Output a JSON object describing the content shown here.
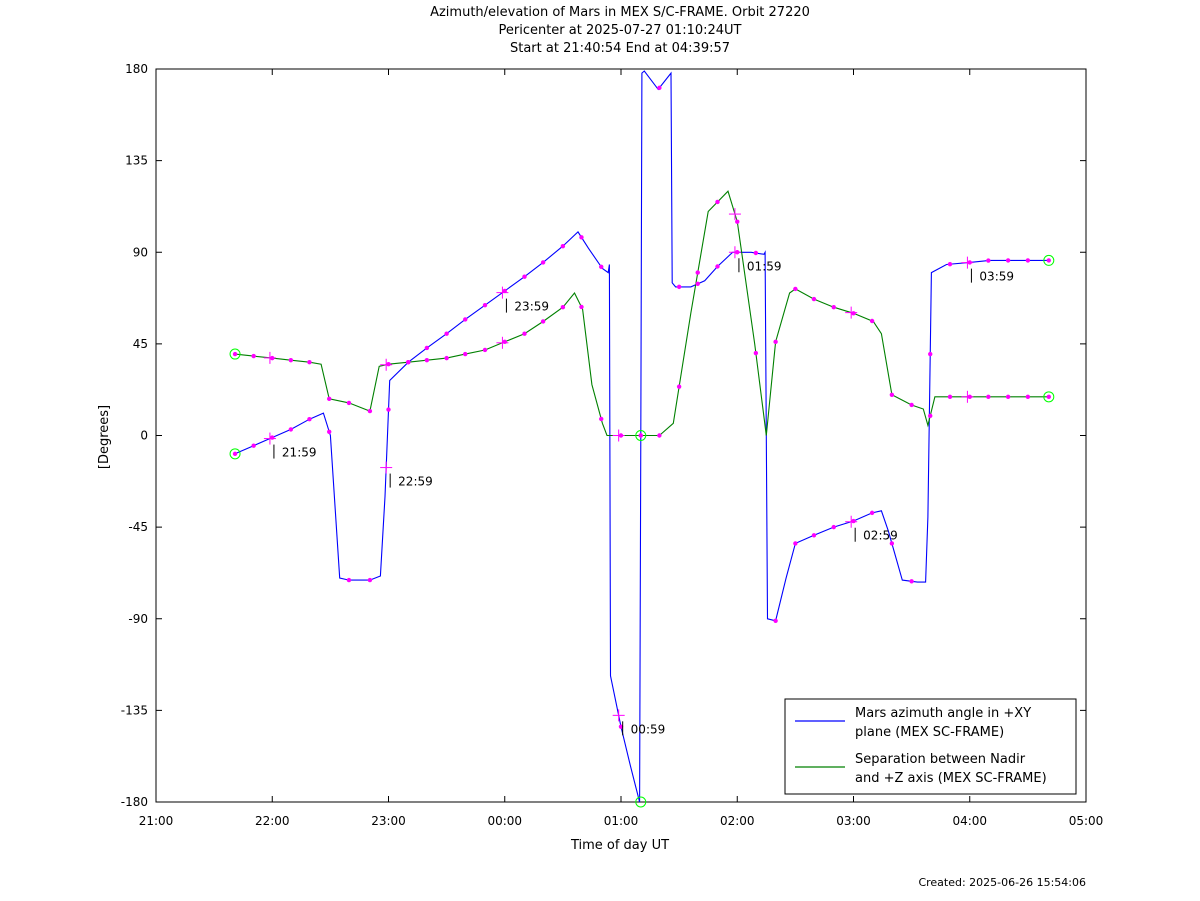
{
  "chart_data": {
    "type": "line",
    "title_lines": [
      "Azimuth/elevation of Mars in MEX S/C-FRAME.  Orbit 27220",
      "Pericenter at 2025-07-27 01:10:24UT",
      "Start at 21:40:54 End at 04:39:57"
    ],
    "xlabel": "Time of day UT",
    "ylabel": "[Degrees]",
    "x_ticks": [
      "21:00",
      "22:00",
      "23:00",
      "00:00",
      "01:00",
      "02:00",
      "03:00",
      "04:00",
      "05:00"
    ],
    "y_ticks": [
      "180",
      "135",
      "90",
      "45",
      "0",
      "-45",
      "-90",
      "-135",
      "-180"
    ],
    "xlim_hours": [
      21,
      29
    ],
    "ylim": [
      -180,
      180
    ],
    "grid": false,
    "legend_position": "bottom-right",
    "colors": {
      "series1": "#0000ff",
      "series2": "#008000",
      "marker": "#ff00ff",
      "endpoint": "#00ff00",
      "axis": "#000000"
    },
    "series": [
      {
        "name": "Mars azimuth angle in +XY plane (MEX SC-FRAME)",
        "legend_lines": [
          "Mars azimuth angle in +XY",
          "plane (MEX SC-FRAME)"
        ],
        "x_hours": [
          21.68,
          21.84,
          22.0,
          22.16,
          22.32,
          22.44,
          22.5,
          22.58,
          22.66,
          22.84,
          22.93,
          22.97,
          23.01,
          23.17,
          23.33,
          23.5,
          23.66,
          23.83,
          24.0,
          24.17,
          24.33,
          24.5,
          24.63,
          24.72,
          24.84,
          24.89,
          24.9,
          24.91,
          25.0,
          25.08,
          25.16,
          25.17,
          25.18,
          25.2,
          25.32,
          25.43,
          25.44,
          25.47,
          25.6,
          25.72,
          25.83,
          25.96,
          26.0,
          26.12,
          26.23,
          26.24,
          26.26,
          26.33,
          26.42,
          26.5,
          26.66,
          26.83,
          27.0,
          27.16,
          27.24,
          27.3,
          27.42,
          27.55,
          27.62,
          27.64,
          27.67,
          27.8,
          28.0,
          28.17,
          28.33,
          28.5,
          28.68
        ],
        "values": [
          -9,
          -5,
          -1,
          3,
          8,
          11,
          0,
          -70,
          -71,
          -71,
          -69,
          -30,
          27,
          36,
          43,
          50,
          57,
          64,
          71,
          78,
          85,
          93,
          100,
          92,
          82,
          80,
          84,
          -118,
          -143,
          -162,
          -180,
          0,
          178,
          179,
          170,
          178,
          75,
          73,
          73,
          76,
          83,
          90,
          90,
          90,
          89,
          90,
          -90,
          -91,
          -70,
          -53,
          -49,
          -45,
          -42,
          -38,
          -37,
          -47,
          -71,
          -72,
          -72,
          -40,
          80,
          84,
          85,
          86,
          86,
          86,
          86
        ]
      },
      {
        "name": "Separation between Nadir and +Z axis (MEX SC-FRAME)",
        "legend_lines": [
          "Separation between Nadir",
          "and +Z axis (MEX SC-FRAME)"
        ],
        "x_hours": [
          21.68,
          21.84,
          22.0,
          22.16,
          22.32,
          22.42,
          22.49,
          22.66,
          22.84,
          22.92,
          23.0,
          23.17,
          23.33,
          23.5,
          23.66,
          23.83,
          24.0,
          24.17,
          24.33,
          24.5,
          24.6,
          24.67,
          24.75,
          24.84,
          24.88,
          25.0,
          25.17,
          25.33,
          25.45,
          25.6,
          25.75,
          25.92,
          26.0,
          26.15,
          26.25,
          26.33,
          26.45,
          26.5,
          26.66,
          26.83,
          27.0,
          27.17,
          27.24,
          27.33,
          27.5,
          27.6,
          27.64,
          27.7,
          27.83,
          28.0,
          28.17,
          28.33,
          28.5,
          28.68
        ],
        "values": [
          40,
          39,
          38,
          37,
          36,
          35,
          18,
          16,
          12,
          34,
          35,
          36,
          37,
          38,
          40,
          42,
          46,
          50,
          56,
          63,
          70,
          62,
          25,
          6,
          0,
          0,
          0,
          0,
          6,
          60,
          110,
          120,
          105,
          45,
          0,
          46,
          70,
          72,
          67,
          63,
          60,
          56,
          50,
          20,
          15,
          13,
          5,
          19,
          19,
          19,
          19,
          19,
          19,
          19
        ]
      }
    ],
    "markers_x_hours": [
      21.68,
      21.84,
      22.0,
      22.16,
      22.32,
      22.49,
      22.66,
      22.84,
      23.0,
      23.17,
      23.33,
      23.5,
      23.66,
      23.83,
      24.0,
      24.17,
      24.33,
      24.5,
      24.66,
      24.83,
      25.0,
      25.17,
      25.33,
      25.5,
      25.66,
      25.83,
      26.0,
      26.16,
      26.33,
      26.5,
      26.66,
      26.83,
      27.0,
      27.16,
      27.33,
      27.5,
      27.66,
      27.83,
      28.0,
      28.16,
      28.33,
      28.5,
      28.68
    ],
    "hour_markers": [
      {
        "label": "21:59",
        "x_hours": 21.98
      },
      {
        "label": "22:59",
        "x_hours": 22.98
      },
      {
        "label": "23:59",
        "x_hours": 23.98
      },
      {
        "label": "00:59",
        "x_hours": 24.98
      },
      {
        "label": "01:59",
        "x_hours": 25.98
      },
      {
        "label": "02:59",
        "x_hours": 26.98
      },
      {
        "label": "03:59",
        "x_hours": 27.98
      }
    ]
  },
  "footer": {
    "created": "Created: 2025-06-26 15:54:06"
  }
}
